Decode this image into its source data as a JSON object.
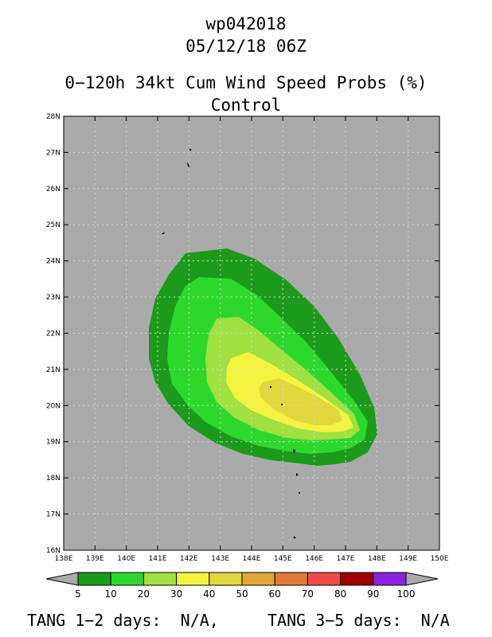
{
  "title": {
    "storm_id": "wp042018",
    "datetime": "05/12/18 06Z",
    "product": "0−120h 34kt Cum Wind Speed Probs (%)",
    "run": "Control"
  },
  "axes": {
    "lon_labels": [
      "138E",
      "139E",
      "140E",
      "141E",
      "142E",
      "143E",
      "144E",
      "145E",
      "146E",
      "147E",
      "148E",
      "149E",
      "150E"
    ],
    "lat_labels": [
      "16N",
      "17N",
      "18N",
      "19N",
      "20N",
      "21N",
      "22N",
      "23N",
      "24N",
      "25N",
      "26N",
      "27N",
      "28N"
    ]
  },
  "colors": {
    "background": "#aaaaaa",
    "land": "#000000",
    "grid": "#d8d8d8"
  },
  "colorbar": {
    "labels": [
      "5",
      "10",
      "20",
      "30",
      "40",
      "50",
      "60",
      "70",
      "80",
      "90",
      "100"
    ],
    "colors": [
      "#1c9a1c",
      "#2cd82c",
      "#a0e040",
      "#f4f440",
      "#e0d83c",
      "#e0a838",
      "#e27a3c",
      "#f04a4a",
      "#a00000",
      "#8a22dc"
    ],
    "end_color": "#aaaaaa"
  },
  "footer": {
    "tang_1_2": "TANG 1−2 days:  N/A,",
    "tang_3_5": "TANG 3−5 days:  N/A"
  }
}
